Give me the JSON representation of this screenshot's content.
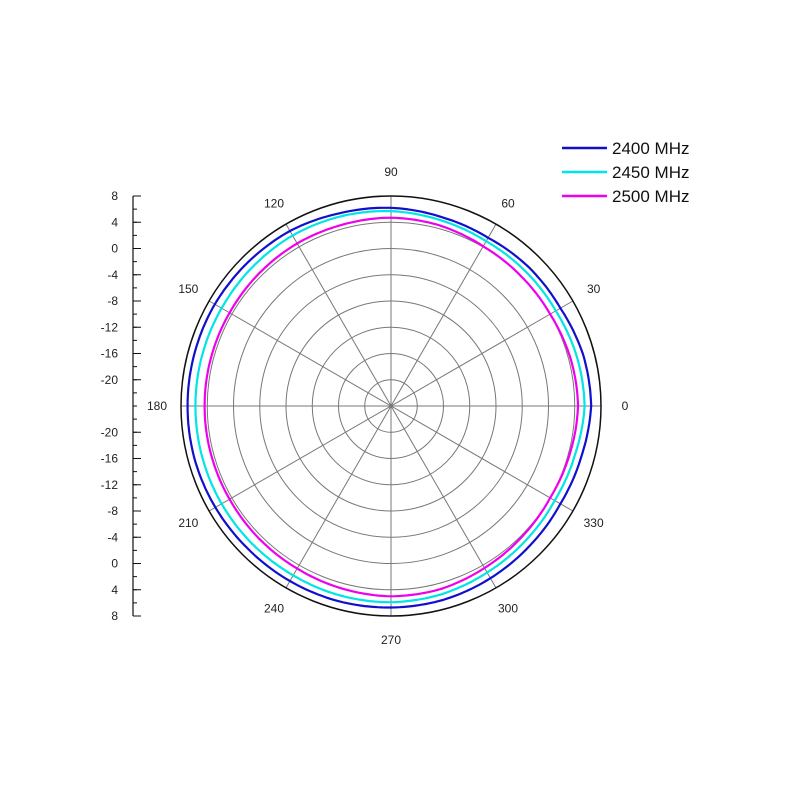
{
  "chart_data": {
    "type": "polar-line",
    "title": "",
    "radial_axis": {
      "min": -24,
      "max": 8,
      "ring_step": 4,
      "tick_labels_top": [
        "8",
        "4",
        "0",
        "-4",
        "-8",
        "-12",
        "-16",
        "-20"
      ],
      "tick_labels_bottom": [
        "-20",
        "-16",
        "-12",
        "-8",
        "-4",
        "0",
        "4",
        "8"
      ]
    },
    "angular_axis": {
      "unit": "degrees",
      "direction": "counterclockwise",
      "zero_at": "right",
      "tick_labels": [
        "0",
        "30",
        "60",
        "90",
        "120",
        "150",
        "180",
        "210",
        "240",
        "270",
        "300",
        "330"
      ],
      "spoke_step_deg": 30
    },
    "legend": {
      "position": "top-right"
    },
    "angles_deg": [
      0,
      15,
      30,
      45,
      60,
      75,
      90,
      105,
      120,
      135,
      150,
      165,
      180,
      195,
      210,
      225,
      240,
      255,
      270,
      285,
      300,
      315,
      330,
      345
    ],
    "series": [
      {
        "name": "2400 MHz",
        "color": "#1010cc",
        "values": [
          6.5,
          6.3,
          5.8,
          5.8,
          5.6,
          5.8,
          6.2,
          6.4,
          6.8,
          6.9,
          7.0,
          7.0,
          7.0,
          7.0,
          6.9,
          6.8,
          6.8,
          6.8,
          6.7,
          6.6,
          6.3,
          6.0,
          5.8,
          6.0
        ]
      },
      {
        "name": "2450 MHz",
        "color": "#00e5e5",
        "values": [
          5.5,
          5.3,
          5.0,
          5.0,
          5.0,
          5.3,
          5.7,
          5.9,
          6.0,
          5.9,
          5.8,
          5.8,
          5.8,
          5.8,
          5.8,
          5.8,
          5.8,
          5.9,
          5.9,
          5.7,
          5.3,
          5.0,
          4.8,
          5.0
        ]
      },
      {
        "name": "2500 MHz",
        "color": "#ee00ee",
        "values": [
          4.5,
          4.3,
          4.0,
          4.0,
          4.1,
          4.5,
          4.7,
          4.6,
          4.6,
          4.5,
          4.4,
          4.4,
          4.4,
          4.4,
          4.4,
          4.5,
          4.6,
          4.8,
          5.0,
          4.9,
          4.5,
          4.2,
          4.0,
          4.2
        ]
      }
    ]
  }
}
